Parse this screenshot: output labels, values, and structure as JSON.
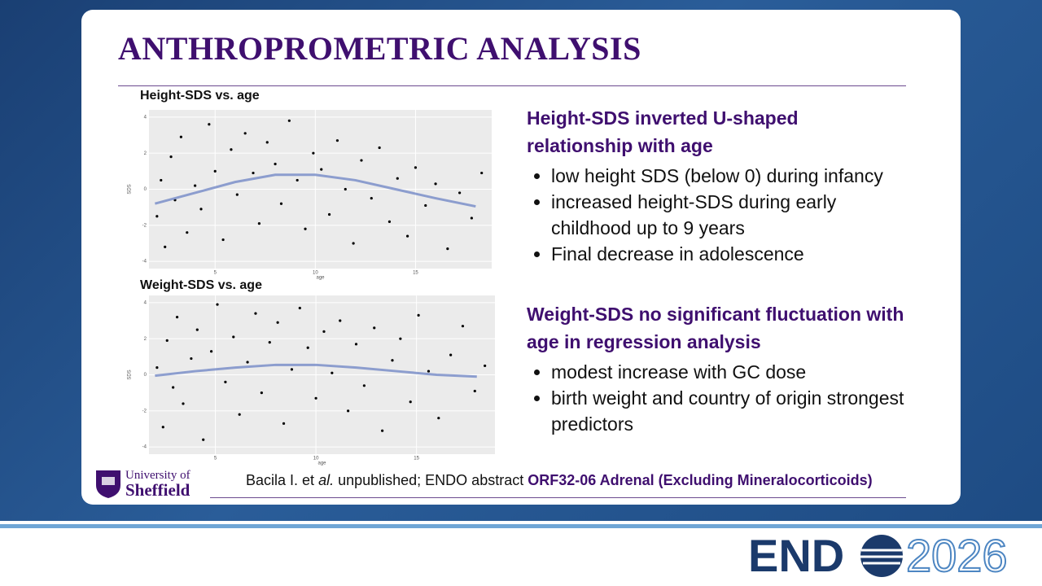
{
  "header": {
    "title": "ANTHROPROMETRIC ANALYSIS"
  },
  "chart_data": [
    {
      "type": "scatter",
      "title": "Height-SDS vs. age",
      "x_label": "age",
      "y_label": "SDS",
      "xlim": [
        1.7,
        18.8
      ],
      "ylim": [
        -4.4,
        4.4
      ],
      "xticks": [
        5,
        10,
        15
      ],
      "yticks": [
        -4,
        -2,
        0,
        2,
        4
      ],
      "grid": true,
      "point_color": "#000000",
      "points": {
        "x": [
          2.1,
          2.3,
          2.5,
          2.8,
          3.0,
          3.3,
          3.6,
          4.0,
          4.3,
          4.7,
          5.0,
          5.4,
          5.8,
          6.1,
          6.5,
          6.9,
          7.2,
          7.6,
          8.0,
          8.3,
          8.7,
          9.1,
          9.5,
          9.9,
          10.3,
          10.7,
          11.1,
          11.5,
          11.9,
          12.3,
          12.8,
          13.2,
          13.7,
          14.1,
          14.6,
          15.0,
          15.5,
          16.0,
          16.6,
          17.2,
          17.8,
          18.3
        ],
        "y": [
          -1.5,
          0.5,
          -3.2,
          1.8,
          -0.6,
          2.9,
          -2.4,
          0.2,
          -1.1,
          3.6,
          1.0,
          -2.8,
          2.2,
          -0.3,
          3.1,
          0.9,
          -1.9,
          2.6,
          1.4,
          -0.8,
          3.8,
          0.5,
          -2.2,
          2.0,
          1.1,
          -1.4,
          2.7,
          0.0,
          -3.0,
          1.6,
          -0.5,
          2.3,
          -1.8,
          0.6,
          -2.6,
          1.2,
          -0.9,
          0.3,
          -3.3,
          -0.2,
          -1.6,
          0.9
        ]
      },
      "trend": {
        "color": "#7b8fc9",
        "x": [
          2,
          4,
          6,
          8,
          10,
          12,
          14,
          16,
          18
        ],
        "y": [
          -0.8,
          -0.2,
          0.4,
          0.8,
          0.8,
          0.5,
          0.0,
          -0.5,
          -0.95
        ]
      }
    },
    {
      "type": "scatter",
      "title": "Weight-SDS vs. age",
      "x_label": "age",
      "y_label": "SDS",
      "xlim": [
        1.7,
        18.9
      ],
      "ylim": [
        -4.4,
        4.4
      ],
      "xticks": [
        5,
        10,
        15
      ],
      "yticks": [
        -4,
        -2,
        0,
        2,
        4
      ],
      "grid": true,
      "point_color": "#000000",
      "points": {
        "x": [
          2.1,
          2.4,
          2.6,
          2.9,
          3.1,
          3.4,
          3.8,
          4.1,
          4.4,
          4.8,
          5.1,
          5.5,
          5.9,
          6.2,
          6.6,
          7.0,
          7.3,
          7.7,
          8.1,
          8.4,
          8.8,
          9.2,
          9.6,
          10.0,
          10.4,
          10.8,
          11.2,
          11.6,
          12.0,
          12.4,
          12.9,
          13.3,
          13.8,
          14.2,
          14.7,
          15.1,
          15.6,
          16.1,
          16.7,
          17.3,
          17.9,
          18.4
        ],
        "y": [
          0.4,
          -2.9,
          1.9,
          -0.7,
          3.2,
          -1.6,
          0.9,
          2.5,
          -3.6,
          1.3,
          3.9,
          -0.4,
          2.1,
          -2.2,
          0.7,
          3.4,
          -1.0,
          1.8,
          2.9,
          -2.7,
          0.3,
          3.7,
          1.5,
          -1.3,
          2.4,
          0.1,
          3.0,
          -2.0,
          1.7,
          -0.6,
          2.6,
          -3.1,
          0.8,
          2.0,
          -1.5,
          3.3,
          0.2,
          -2.4,
          1.1,
          2.7,
          -0.9,
          0.5
        ]
      },
      "trend": {
        "color": "#7b8fc9",
        "x": [
          2,
          4,
          6,
          8,
          10,
          12,
          14,
          16,
          18
        ],
        "y": [
          -0.05,
          0.2,
          0.4,
          0.55,
          0.55,
          0.4,
          0.2,
          0.0,
          -0.1
        ]
      }
    }
  ],
  "findings": [
    {
      "heading": "Height-SDS inverted U-shaped relationship with age",
      "bullets": [
        "low height SDS (below 0) during infancy",
        "increased height-SDS during early childhood up to 9 years",
        "Final decrease in adolescence"
      ]
    },
    {
      "heading": "Weight-SDS no significant fluctuation with age in regression analysis",
      "bullets": [
        "modest increase with GC dose",
        "birth weight and country of origin strongest predictors"
      ]
    }
  ],
  "citation": {
    "authors": "Bacila I. et",
    "etal": "al.",
    "text": "unpublished; ENDO abstract",
    "abstract": "ORF32-06 Adrenal (Excluding Mineralocorticoids)"
  },
  "university_logo": {
    "line1": "University of",
    "line2": "Sheffield"
  },
  "event_logo": {
    "name": "END",
    "year": "2026"
  }
}
